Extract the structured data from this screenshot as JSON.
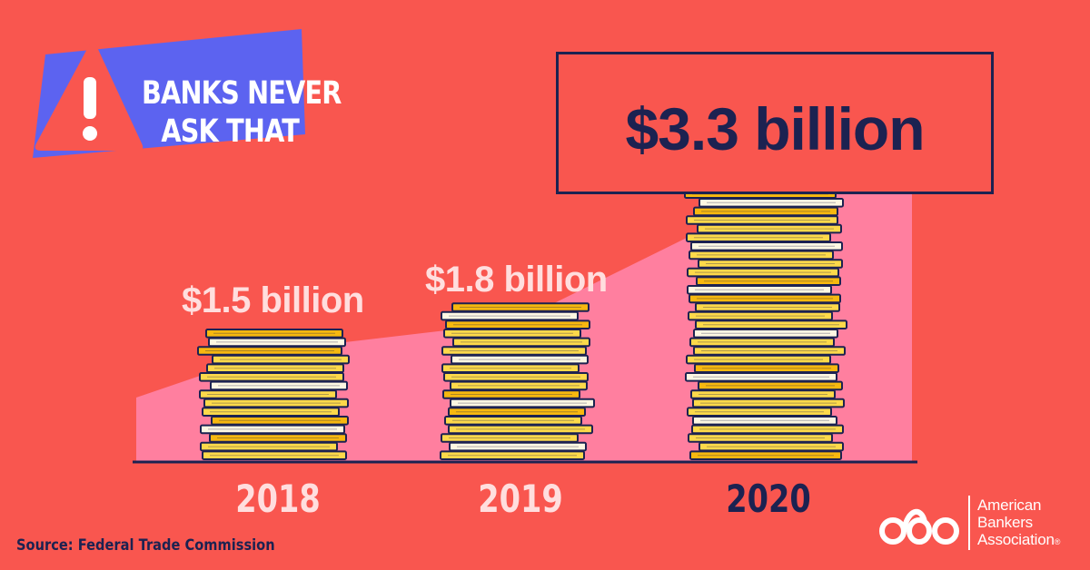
{
  "badge": {
    "line1": "BANKS NEVER",
    "line2": "ASK THAT",
    "icon": "warning-exclamation-icon"
  },
  "chart_data": {
    "type": "bar",
    "title": "",
    "categories": [
      "2018",
      "2019",
      "2020"
    ],
    "values": [
      1.5,
      1.8,
      3.3
    ],
    "value_labels": [
      "$1.5 billion",
      "$1.8 billion",
      "$3.3 billion"
    ],
    "units": "billion USD",
    "highlight_index": 2,
    "xlabel": "",
    "ylabel": "",
    "ylim": [
      0,
      3.3
    ],
    "grid": false,
    "legend": "none"
  },
  "source": "Source: Federal Trade Commission",
  "logo": {
    "line1": "American",
    "line2": "Bankers",
    "line3": "Association",
    "registered": "®"
  },
  "colors": {
    "background": "#f9564f",
    "area": "#ff7f9f",
    "navy": "#1c2251",
    "label_light": "#ffdede",
    "coin_gold": "#fdd94a",
    "coin_orange": "#f7b80f",
    "coin_cream": "#fdf7e2",
    "badge_blue": "#5c63f0"
  }
}
